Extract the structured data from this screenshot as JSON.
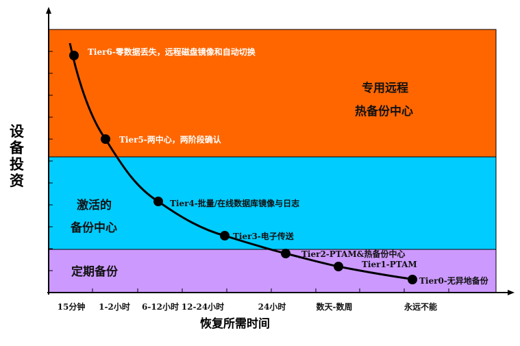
{
  "y_axis_label": "设备投资",
  "x_axis_label": "恢复所需时间",
  "x_ticks": [
    "15分钟",
    "1-2小时",
    "6-12小时",
    "12-24小时",
    "24小时",
    "数天-数周",
    "永远不能"
  ],
  "zones": [
    {
      "lines": [
        "专用远程",
        "热备份中心"
      ],
      "color": "#FF6600"
    },
    {
      "lines": [
        "激活的",
        "备份中心"
      ],
      "color": "#00CCFF"
    },
    {
      "lines": [
        "定期备份"
      ],
      "color": "#CC99FF"
    }
  ],
  "tiers": [
    "Tier6-零数据丢失，远程磁盘镜像和自动切换",
    "Tier5-两中心，两阶段确认",
    "Tier4-批量/在线数据库镜像与日志",
    "Tier3-电子传送",
    "Tier2-PTAM&热备份中心",
    "Tier1-PTAM",
    "Tier0-无异地备份"
  ]
}
